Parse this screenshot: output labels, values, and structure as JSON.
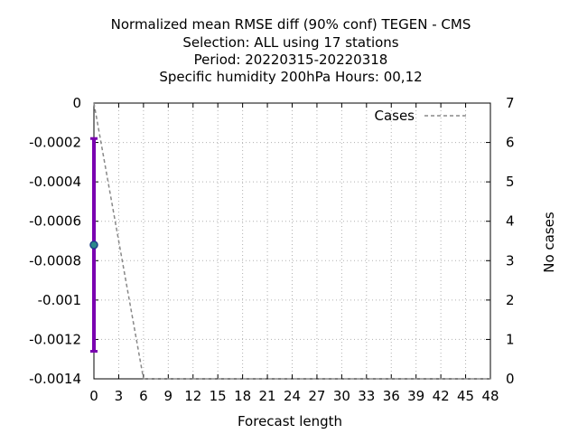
{
  "chart_data": {
    "type": "line",
    "title_lines": [
      "Normalized mean RMSE diff (90% conf) TEGEN - CMS",
      "Selection: ALL using    17 stations",
      "Period: 20220315-20220318",
      "Specific humidity 200hPa   Hours:  00,12"
    ],
    "xlabel": "Forecast length",
    "ylabel_left": "",
    "ylabel_right": "No cases",
    "xlim": [
      0,
      48
    ],
    "ylim_left": [
      -0.0014,
      0
    ],
    "ylim_right": [
      0,
      7
    ],
    "x_ticks": [
      0,
      3,
      6,
      9,
      12,
      15,
      18,
      21,
      24,
      27,
      30,
      33,
      36,
      39,
      42,
      45,
      48
    ],
    "y_left_ticks": [
      {
        "value": 0,
        "label": "0"
      },
      {
        "value": -0.0002,
        "label": "-0.0002"
      },
      {
        "value": -0.0004,
        "label": "-0.0004"
      },
      {
        "value": -0.0006,
        "label": "-0.0006"
      },
      {
        "value": -0.0008,
        "label": "-0.0008"
      },
      {
        "value": -0.001,
        "label": "-0.001"
      },
      {
        "value": -0.0012,
        "label": "-0.0012"
      },
      {
        "value": -0.0014,
        "label": "-0.0014"
      }
    ],
    "y_right_ticks": [
      0,
      1,
      2,
      3,
      4,
      5,
      6,
      7
    ],
    "grid": true,
    "legend": {
      "placement": "top-right",
      "entries": [
        "Cases"
      ]
    },
    "error_bar": {
      "x": 0,
      "mean": -0.00072,
      "lower": -0.00126,
      "upper": -0.00018,
      "color": "#7a00b0"
    },
    "series": [
      {
        "name": "Cases",
        "axis": "right",
        "color": "#888888",
        "style": "dashed",
        "x": [
          0,
          6,
          48
        ],
        "values": [
          7,
          0,
          0
        ]
      }
    ]
  }
}
